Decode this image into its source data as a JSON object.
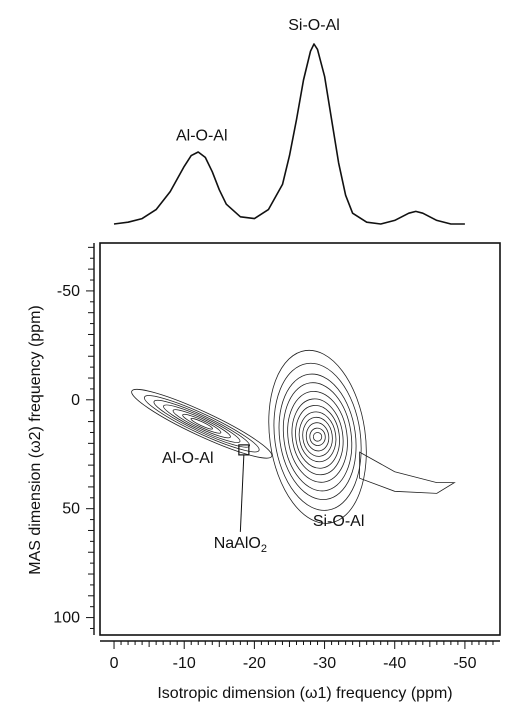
{
  "chart_data": {
    "type": "contour",
    "projection": {
      "type": "line",
      "x": [
        0,
        -2,
        -4,
        -6,
        -8,
        -10,
        -11,
        -12,
        -13,
        -14,
        -15,
        -16,
        -18,
        -20,
        -22,
        -24,
        -25,
        -26,
        -27,
        -28,
        -28.5,
        -29,
        -30,
        -31,
        -32,
        -33,
        -34,
        -36,
        -38,
        -40,
        -42,
        -43,
        -44,
        -46,
        -48,
        -50
      ],
      "y": [
        0,
        0.01,
        0.03,
        0.08,
        0.18,
        0.32,
        0.38,
        0.4,
        0.37,
        0.29,
        0.19,
        0.11,
        0.04,
        0.03,
        0.08,
        0.22,
        0.38,
        0.58,
        0.8,
        0.96,
        1.0,
        0.97,
        0.82,
        0.58,
        0.34,
        0.16,
        0.06,
        0.01,
        0.0,
        0.02,
        0.06,
        0.07,
        0.06,
        0.02,
        0.0,
        0.0
      ],
      "labels": [
        {
          "text": "Al-O-Al",
          "x": -12.5
        },
        {
          "text": "Si-O-Al",
          "x": -28.5
        }
      ]
    },
    "contour": {
      "xlabel": "Isotropic dimension (ω1) frequency (ppm)",
      "ylabel": "MAS dimension (ω2) frequency (ppm)",
      "xlim": [
        2,
        -55
      ],
      "ylim": [
        -72,
        108
      ],
      "xticks": [
        0,
        -10,
        -20,
        -30,
        -40,
        -50
      ],
      "yticks": [
        -50,
        0,
        50,
        100
      ],
      "peaks": [
        {
          "label": "Al-O-Al",
          "center": [
            -12.5,
            11
          ],
          "levels": [
            {
              "a": 11,
              "b": 5.5,
              "angle": 25
            },
            {
              "a": 9,
              "b": 4.5,
              "angle": 25
            },
            {
              "a": 7.5,
              "b": 3.7,
              "angle": 25
            },
            {
              "a": 6,
              "b": 3,
              "angle": 25
            },
            {
              "a": 4.5,
              "b": 2.3,
              "angle": 25
            },
            {
              "a": 3,
              "b": 1.6,
              "angle": 25
            },
            {
              "a": 1.7,
              "b": 0.9,
              "angle": 25
            }
          ]
        },
        {
          "label": "Si-O-Al",
          "center": [
            -29,
            17
          ],
          "levels": [
            {
              "a": 6.8,
              "b": 40,
              "angle": -8
            },
            {
              "a": 6.1,
              "b": 34,
              "angle": -8
            },
            {
              "a": 5.4,
              "b": 29,
              "angle": -8
            },
            {
              "a": 4.8,
              "b": 25,
              "angle": -8
            },
            {
              "a": 4.2,
              "b": 21,
              "angle": -8
            },
            {
              "a": 3.6,
              "b": 17.5,
              "angle": -8
            },
            {
              "a": 3.1,
              "b": 14.5,
              "angle": -8
            },
            {
              "a": 2.6,
              "b": 11.5,
              "angle": -8
            },
            {
              "a": 2.1,
              "b": 9,
              "angle": -8
            },
            {
              "a": 1.6,
              "b": 6.5,
              "angle": -8
            },
            {
              "a": 1.1,
              "b": 4,
              "angle": -8
            },
            {
              "a": 0.6,
              "b": 2,
              "angle": -8
            }
          ]
        }
      ],
      "tail": {
        "points": [
          [
            -35,
            24
          ],
          [
            -40,
            33
          ],
          [
            -46,
            38
          ],
          [
            -48.5,
            38
          ],
          [
            -46,
            43
          ],
          [
            -40,
            42
          ],
          [
            -35,
            36
          ]
        ]
      },
      "annotations": [
        {
          "text": "Al-O-Al",
          "x": -10.5,
          "y": 29
        },
        {
          "text": "Si-O-Al",
          "x": -32,
          "y": 58
        },
        {
          "text": "NaAlO",
          "sub": "2",
          "x": -18,
          "y": 68,
          "marker": [
            -18.5,
            23
          ]
        }
      ]
    }
  }
}
